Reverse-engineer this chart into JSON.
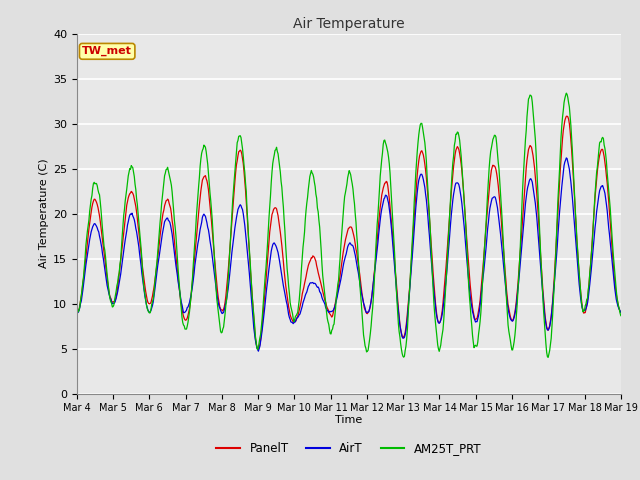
{
  "title": "Air Temperature",
  "ylabel": "Air Temperature (C)",
  "xlabel": "Time",
  "annotation": "TW_met",
  "ylim": [
    0,
    40
  ],
  "yticks": [
    0,
    5,
    10,
    15,
    20,
    25,
    30,
    35,
    40
  ],
  "x_labels": [
    "Mar 4",
    "Mar 5",
    "Mar 6",
    "Mar 7",
    "Mar 8",
    "Mar 9",
    "Mar 10",
    "Mar 11",
    "Mar 12",
    "Mar 13",
    "Mar 14",
    "Mar 15",
    "Mar 16",
    "Mar 17",
    "Mar 18",
    "Mar 19"
  ],
  "line_colors": {
    "PanelT": "#dd0000",
    "AirT": "#0000dd",
    "AM25T_PRT": "#00bb00"
  },
  "bg_color": "#e8e8e8",
  "grid_color": "#ffffff",
  "annotation_bg": "#ffffaa",
  "annotation_border": "#bb8800",
  "annotation_text_color": "#cc0000",
  "title_color": "#333333",
  "fig_bg": "#e0e0e0",
  "n_points": 720
}
